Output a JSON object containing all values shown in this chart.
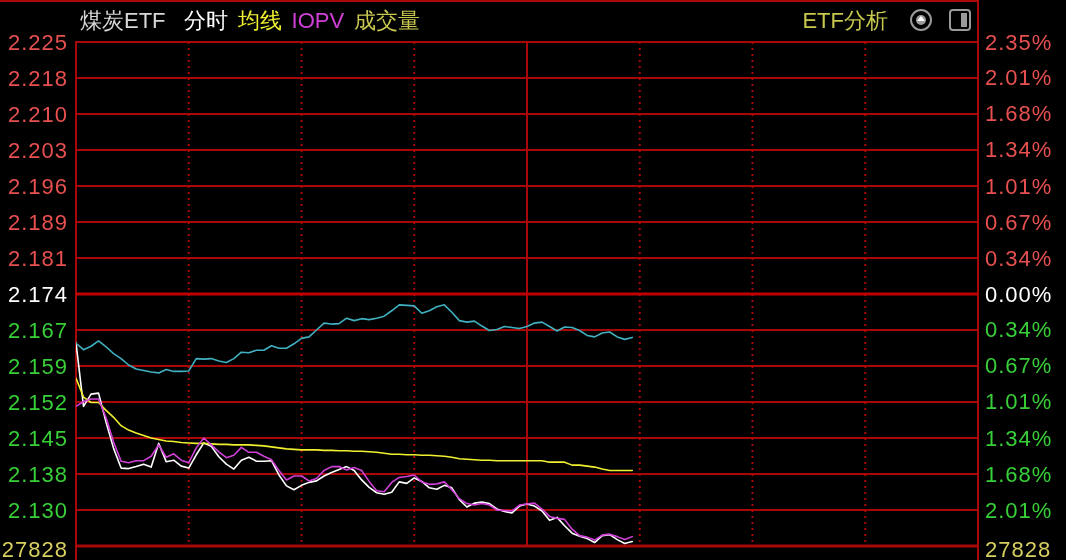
{
  "chart_data": {
    "type": "line",
    "title": "煤炭ETF",
    "grid": true,
    "line_style": "solid",
    "categories": [
      null,
      null,
      null,
      null,
      null,
      null,
      null,
      null,
      null,
      null,
      null,
      null,
      null,
      null,
      null,
      null,
      null,
      null,
      null,
      null,
      null,
      null,
      null,
      null,
      null,
      null,
      null,
      null,
      null,
      null,
      null,
      null,
      null,
      null,
      null,
      null,
      null,
      null,
      null,
      null,
      null,
      null,
      null,
      null,
      null,
      null,
      null,
      null,
      null,
      null,
      null,
      null,
      null,
      null,
      null,
      null,
      null,
      null,
      null,
      null,
      null,
      null,
      null,
      null,
      null,
      null,
      null,
      null,
      null,
      null,
      null,
      null,
      null,
      null,
      null,
      null,
      null,
      null,
      null,
      null,
      null,
      null,
      null,
      null,
      null,
      null,
      null,
      null,
      null,
      null,
      null,
      null,
      null,
      null,
      null,
      null,
      null,
      null,
      null,
      null,
      null,
      null,
      null,
      null,
      null,
      null,
      null,
      null,
      null,
      null,
      null,
      null,
      null,
      null,
      null,
      null,
      null,
      null,
      null,
      null,
      null
    ],
    "ylim": [
      2.1229,
      2.2251
    ],
    "yticks": [
      {
        "value": 2.2251,
        "label": "2.225"
      },
      {
        "value": 2.2178,
        "label": "2.218"
      },
      {
        "value": 2.2105,
        "label": "2.210"
      },
      {
        "value": 2.2032,
        "label": "2.203"
      },
      {
        "value": 2.1959,
        "label": "2.196"
      },
      {
        "value": 2.1886,
        "label": "2.189"
      },
      {
        "value": 2.1813,
        "label": "2.181"
      },
      2.174,
      {
        "value": 2.1667,
        "label": "2.167"
      },
      {
        "value": 2.1594,
        "label": "2.159"
      },
      {
        "value": 2.1521,
        "label": "2.152"
      },
      {
        "value": 2.1448,
        "label": "2.145"
      },
      {
        "value": 2.1375,
        "label": "2.138"
      },
      {
        "value": 2.1302,
        "label": "2.130"
      }
    ],
    "y2lim": [
      -2.35,
      2.35
    ],
    "y2ticks": [
      {
        "value": 2.35,
        "label": "2.35%"
      },
      {
        "value": 2.0143,
        "label": "2.01%"
      },
      {
        "value": 1.6786,
        "label": "1.68%"
      },
      {
        "value": 1.3429,
        "label": "1.34%"
      },
      {
        "value": 1.0071,
        "label": "1.01%"
      },
      {
        "value": 0.6714,
        "label": "0.67%"
      },
      {
        "value": 0.3357,
        "label": "0.34%"
      },
      {
        "value": 0,
        "label": "0.00%"
      },
      {
        "value": -0.3357,
        "label": "0.34%"
      },
      {
        "value": -0.6714,
        "label": "0.67%"
      },
      {
        "value": -1.0071,
        "label": "1.01%"
      },
      {
        "value": -1.3429,
        "label": "1.34%"
      },
      {
        "value": -1.6786,
        "label": "1.68%"
      },
      {
        "value": -2.0143,
        "label": "2.01%"
      }
    ],
    "ref_lines": [
      {
        "axis": "y",
        "value": 2.174,
        "color": "#c00000"
      }
    ],
    "annotations": [
      "成交量",
      "ETF分析",
      "27828",
      "27828"
    ],
    "series": [
      {
        "name": "分时",
        "color": "#ffffff",
        "values": [
          2.1641,
          2.1512,
          2.1537,
          2.1539,
          2.148,
          2.1427,
          2.1387,
          2.1386,
          2.139,
          2.1395,
          2.1389,
          2.1437,
          2.14,
          2.1403,
          2.1391,
          2.1387,
          2.1414,
          2.1438,
          2.1431,
          2.141,
          2.1395,
          2.1385,
          2.1403,
          2.1409,
          2.1401,
          2.1401,
          2.1402,
          2.1373,
          2.1351,
          2.1343,
          2.1352,
          2.1358,
          2.1361,
          2.1371,
          2.1378,
          2.1384,
          2.139,
          2.1382,
          2.1363,
          2.1348,
          2.1337,
          2.1334,
          2.1338,
          2.1359,
          2.1356,
          2.1367,
          2.136,
          2.1347,
          2.1344,
          2.1352,
          2.1347,
          2.1323,
          2.1308,
          2.1316,
          2.1318,
          2.1315,
          2.1304,
          2.1299,
          2.1296,
          2.131,
          2.1314,
          2.131,
          2.13,
          2.1281,
          2.1287,
          2.127,
          2.1255,
          2.1249,
          2.1244,
          2.1236,
          2.125,
          2.1252,
          2.1242,
          2.1234,
          2.1238,
          null,
          null,
          null,
          null,
          null,
          null,
          null,
          null,
          null,
          null,
          null,
          null,
          null,
          null,
          null,
          null,
          null,
          null,
          null,
          null,
          null,
          null,
          null,
          null,
          null,
          null,
          null,
          null,
          null,
          null,
          null,
          null,
          null,
          null,
          null,
          null,
          null,
          null,
          null,
          null,
          null,
          null,
          null,
          null,
          null,
          null
        ]
      },
      {
        "name": "均线",
        "color": "#f0f030",
        "values": [
          2.1569,
          2.1531,
          2.152,
          2.152,
          2.1504,
          2.149,
          2.1473,
          2.1464,
          2.1458,
          2.1453,
          2.1448,
          2.1445,
          2.1442,
          2.1441,
          2.1439,
          2.1438,
          2.1437,
          2.1437,
          2.1436,
          2.1435,
          2.1435,
          2.1434,
          2.1434,
          2.1434,
          2.1433,
          2.1432,
          2.143,
          2.1428,
          2.1426,
          2.1425,
          2.1424,
          2.1424,
          2.1424,
          2.1423,
          2.1423,
          2.1422,
          2.1422,
          2.1421,
          2.1421,
          2.142,
          2.1419,
          2.1417,
          2.1415,
          2.1415,
          2.1414,
          2.1414,
          2.1413,
          2.1413,
          2.1412,
          2.1411,
          2.1409,
          2.1406,
          2.1405,
          2.1404,
          2.1403,
          2.1403,
          2.1402,
          2.1402,
          2.1402,
          2.1402,
          2.1402,
          2.1402,
          2.1402,
          2.1399,
          2.1399,
          2.1399,
          2.1393,
          2.1393,
          2.1391,
          2.1389,
          2.1385,
          2.1382,
          2.1382,
          2.1382,
          2.1382,
          null,
          null,
          null,
          null,
          null,
          null,
          null,
          null,
          null,
          null,
          null,
          null,
          null,
          null,
          null,
          null,
          null,
          null,
          null,
          null,
          null,
          null,
          null,
          null,
          null,
          null,
          null,
          null,
          null,
          null,
          null,
          null,
          null,
          null,
          null,
          null,
          null,
          null,
          null,
          null,
          null,
          null,
          null,
          null,
          null,
          null
        ]
      },
      {
        "name": "IOPV",
        "color": "#d040d8",
        "values": [
          2.1512,
          2.1522,
          2.1527,
          2.1527,
          2.1489,
          2.144,
          2.1401,
          2.1398,
          2.1402,
          2.1402,
          2.1411,
          2.1434,
          2.1409,
          2.1416,
          2.1403,
          2.1398,
          2.1428,
          2.1448,
          2.1434,
          2.142,
          2.1408,
          2.1413,
          2.1429,
          2.1419,
          2.1419,
          2.1411,
          2.1404,
          2.1382,
          2.1363,
          2.1371,
          2.1371,
          2.1361,
          2.1366,
          2.1382,
          2.139,
          2.139,
          2.1383,
          2.1388,
          2.1382,
          2.136,
          2.1341,
          2.1339,
          2.1358,
          2.1368,
          2.137,
          2.1373,
          2.1359,
          2.1354,
          2.1355,
          2.1359,
          2.1343,
          2.1325,
          2.1315,
          2.1312,
          2.1315,
          2.1312,
          2.1302,
          2.1301,
          2.13,
          2.1312,
          2.1314,
          2.1316,
          2.1304,
          2.1289,
          2.1285,
          2.1283,
          2.1263,
          2.125,
          2.1247,
          2.1241,
          2.1251,
          2.1253,
          2.1248,
          2.1242,
          2.1248,
          null,
          null,
          null,
          null,
          null,
          null,
          null,
          null,
          null,
          null,
          null,
          null,
          null,
          null,
          null,
          null,
          null,
          null,
          null,
          null,
          null,
          null,
          null,
          null,
          null,
          null,
          null,
          null,
          null,
          null,
          null,
          null,
          null,
          null,
          null,
          null,
          null,
          null,
          null,
          null,
          null,
          null,
          null,
          null,
          null,
          null
        ]
      },
      {
        "color": "#40b0c0",
        "values": [
          2.164,
          2.1627,
          2.1634,
          2.1645,
          2.1633,
          2.1619,
          2.1609,
          2.1596,
          2.1588,
          2.1585,
          2.1582,
          2.158,
          2.1587,
          2.1583,
          2.1583,
          2.1584,
          2.1609,
          2.1608,
          2.1609,
          2.1604,
          2.1601,
          2.1609,
          2.1622,
          2.1621,
          2.1626,
          2.1626,
          2.1635,
          2.163,
          2.163,
          2.1639,
          2.165,
          2.1653,
          2.1667,
          2.1681,
          2.1679,
          2.168,
          2.1691,
          2.1686,
          2.169,
          2.1688,
          2.1691,
          2.1695,
          2.1706,
          2.1718,
          2.1717,
          2.1716,
          2.1701,
          2.1706,
          2.1714,
          2.1718,
          2.1703,
          2.1686,
          2.1683,
          2.1685,
          2.1675,
          2.1666,
          2.1668,
          2.1674,
          2.1672,
          2.167,
          2.1674,
          2.1681,
          2.1683,
          2.1674,
          2.1665,
          2.1673,
          2.1672,
          2.1666,
          2.1656,
          2.1653,
          2.1661,
          2.1663,
          2.1653,
          2.1648,
          2.1652,
          null,
          null,
          null,
          null,
          null,
          null,
          null,
          null,
          null,
          null,
          null,
          null,
          null,
          null,
          null,
          null,
          null,
          null,
          null,
          null,
          null,
          null,
          null,
          null,
          null,
          null,
          null,
          null,
          null,
          null,
          null,
          null,
          null,
          null,
          null,
          null,
          null,
          null,
          null,
          null,
          null,
          null,
          null,
          null,
          null,
          null
        ]
      }
    ]
  }
}
